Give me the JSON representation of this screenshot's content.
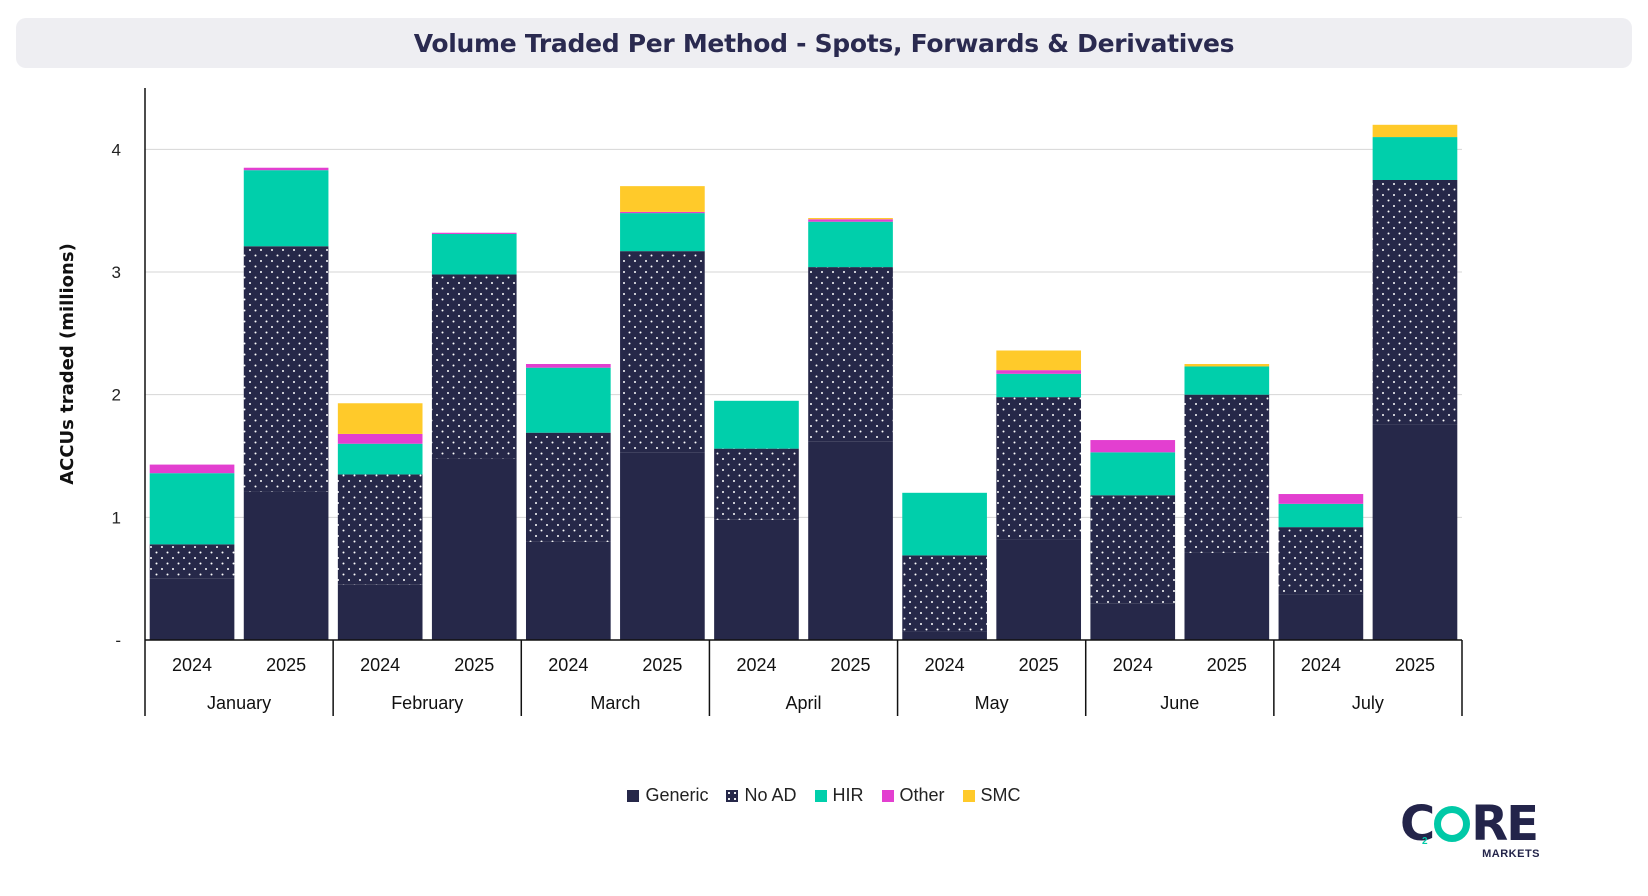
{
  "title": "Volume Traded Per Method - Spots, Forwards & Derivatives",
  "colors": {
    "Generic": "#262849",
    "No AD": "#262849",
    "HIR": "#00cfab",
    "Other": "#e33fd0",
    "SMC": "#ffca2a"
  },
  "logo": {
    "main_left": "C",
    "main_right": "RE",
    "sub": "2",
    "tagline": "MARKETS"
  },
  "chart_data": {
    "type": "bar",
    "stacked": true,
    "ylabel": "ACCUs traded (millions)",
    "ylim": [
      0,
      4.5
    ],
    "yticks": [
      {
        "value": 0,
        "label": "-"
      },
      {
        "value": 1,
        "label": "1"
      },
      {
        "value": 2,
        "label": "2"
      },
      {
        "value": 3,
        "label": "3"
      },
      {
        "value": 4,
        "label": "4"
      }
    ],
    "grid": true,
    "legend_position": "bottom",
    "groups": [
      "January",
      "February",
      "March",
      "April",
      "May",
      "June",
      "July"
    ],
    "years": [
      "2024",
      "2025"
    ],
    "categories": [
      "January 2024",
      "January 2025",
      "February 2024",
      "February 2025",
      "March 2024",
      "March 2025",
      "April 2024",
      "April 2025",
      "May 2024",
      "May 2025",
      "June 2024",
      "June 2025",
      "July 2024",
      "July 2025"
    ],
    "series": [
      {
        "name": "Generic",
        "pattern": "solid",
        "values": [
          0.5,
          1.21,
          0.45,
          1.48,
          0.8,
          1.53,
          0.98,
          1.62,
          0.07,
          0.82,
          0.3,
          0.71,
          0.37,
          1.76
        ]
      },
      {
        "name": "No AD",
        "pattern": "dotted",
        "values": [
          0.28,
          2.0,
          0.9,
          1.5,
          0.89,
          1.64,
          0.58,
          1.42,
          0.62,
          1.16,
          0.88,
          1.29,
          0.55,
          1.99
        ]
      },
      {
        "name": "HIR",
        "pattern": "solid",
        "values": [
          0.58,
          0.62,
          0.25,
          0.33,
          0.53,
          0.31,
          0.39,
          0.37,
          0.51,
          0.19,
          0.35,
          0.23,
          0.19,
          0.35
        ]
      },
      {
        "name": "Other",
        "pattern": "solid",
        "values": [
          0.07,
          0.02,
          0.08,
          0.01,
          0.03,
          0.01,
          0.0,
          0.02,
          0.0,
          0.03,
          0.1,
          0.0,
          0.08,
          0.0
        ]
      },
      {
        "name": "SMC",
        "pattern": "solid",
        "values": [
          0.0,
          0.0,
          0.25,
          0.0,
          0.0,
          0.21,
          0.0,
          0.01,
          0.0,
          0.16,
          0.0,
          0.02,
          0.0,
          0.1
        ]
      }
    ]
  }
}
